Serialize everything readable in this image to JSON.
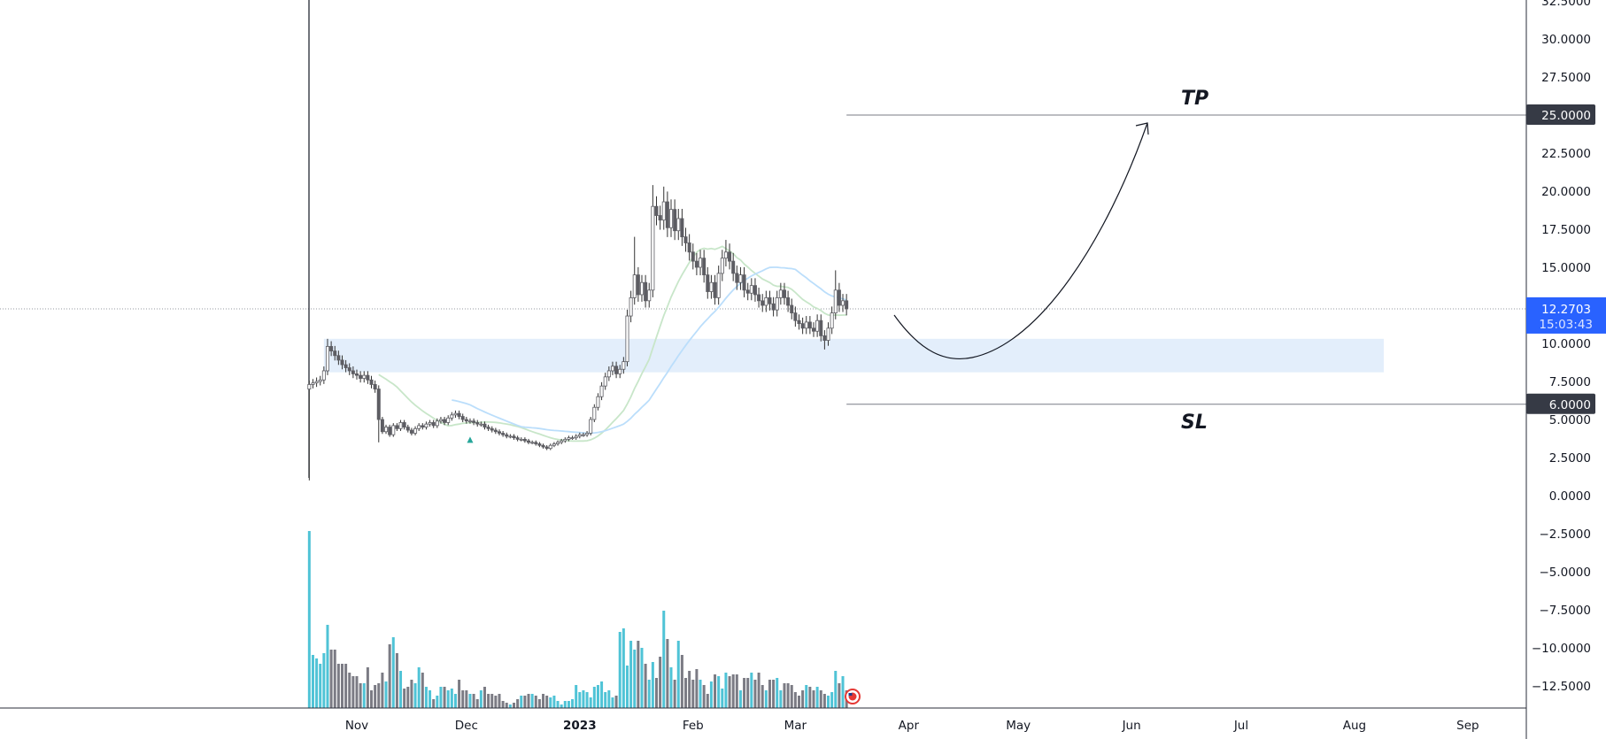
{
  "chart_data": {
    "type": "candlestick",
    "start_date": "2022-10-19",
    "close": [
      7.3,
      7.4,
      7.5,
      7.6,
      8.2,
      9.8,
      9.5,
      9.2,
      8.9,
      8.6,
      8.4,
      8.2,
      8.0,
      7.9,
      7.7,
      7.9,
      7.6,
      7.3,
      7.0,
      5.0,
      4.2,
      4.5,
      4.0,
      4.6,
      4.4,
      4.8,
      4.5,
      4.3,
      4.1,
      4.4,
      4.6,
      4.5,
      4.7,
      4.8,
      4.6,
      4.9,
      5.0,
      4.8,
      5.1,
      5.3,
      5.4,
      5.2,
      5.0,
      4.9,
      4.9,
      4.8,
      4.7,
      4.7,
      4.5,
      4.4,
      4.3,
      4.2,
      4.1,
      4.0,
      3.9,
      3.9,
      3.8,
      3.7,
      3.7,
      3.6,
      3.5,
      3.5,
      3.4,
      3.3,
      3.2,
      3.1,
      3.3,
      3.4,
      3.5,
      3.6,
      3.7,
      3.8,
      3.8,
      3.9,
      4.0,
      4.0,
      4.1,
      5.0,
      5.8,
      6.5,
      7.2,
      7.8,
      8.2,
      8.5,
      8.0,
      8.3,
      8.8,
      11.8,
      13.0,
      14.5,
      13.2,
      14.0,
      12.8,
      13.5,
      19.0,
      18.4,
      18.1,
      19.3,
      17.6,
      18.8,
      17.4,
      18.2,
      17.0,
      16.6,
      16.0,
      15.4,
      15.0,
      15.6,
      14.5,
      13.4,
      14.0,
      13.0,
      14.6,
      15.6,
      16.0,
      15.4,
      14.6,
      14.0,
      14.5,
      13.5,
      13.3,
      13.8,
      13.2,
      12.8,
      12.5,
      13.0,
      12.6,
      12.2,
      13.0,
      13.5,
      13.0,
      12.5,
      12.0,
      11.5,
      11.3,
      11.0,
      11.4,
      11.0,
      10.8,
      11.5,
      10.5,
      10.2,
      11.0,
      12.0,
      13.5,
      12.5,
      12.8,
      12.2703
    ],
    "first_open": 7.0,
    "wick_extremes": [
      {
        "date": "2022-10-19",
        "low": 1.0
      },
      {
        "date": "2022-10-24",
        "high": 10.3
      },
      {
        "date": "2022-11-07",
        "low": 3.5
      },
      {
        "date": "2023-01-16",
        "high": 17.0
      },
      {
        "date": "2023-01-21",
        "high": 20.4
      },
      {
        "date": "2023-01-24",
        "high": 20.3
      },
      {
        "date": "2023-02-10",
        "high": 16.8
      },
      {
        "date": "2023-03-12",
        "high": 14.8
      },
      {
        "date": "2023-03-09",
        "low": 9.6
      }
    ],
    "volume": [
      100,
      30,
      28,
      25,
      31,
      47,
      33,
      33,
      25,
      25,
      25,
      20,
      18,
      18,
      14,
      14,
      23,
      10,
      13,
      14,
      20,
      15,
      36,
      40,
      31,
      21,
      11,
      12,
      16,
      14,
      23,
      20,
      12,
      10,
      5,
      7,
      12,
      12,
      10,
      11,
      8,
      16,
      10,
      10,
      8,
      8,
      5,
      10,
      12,
      8,
      8,
      7,
      8,
      4,
      3,
      2,
      3,
      5,
      7,
      7,
      8,
      8,
      7,
      5,
      8,
      7,
      6,
      7,
      4,
      2,
      4,
      4,
      5,
      13,
      9,
      10,
      9,
      6,
      12,
      13,
      15,
      9,
      10,
      6,
      7,
      43,
      45,
      24,
      38,
      33,
      38,
      34,
      25,
      16,
      26,
      17,
      29,
      55,
      39,
      23,
      16,
      38,
      30,
      17,
      21,
      16,
      22,
      16,
      13,
      8,
      15,
      19,
      18,
      11,
      20,
      18,
      19,
      19,
      10,
      17,
      17,
      20,
      16,
      20,
      13,
      10,
      16,
      16,
      17,
      10,
      14,
      14,
      13,
      9,
      7,
      10,
      13,
      12,
      10,
      12,
      10,
      8,
      7,
      9,
      21,
      14,
      18,
      10
    ],
    "moving_averages": [
      {
        "period": 20,
        "color": "#c8e6c9"
      },
      {
        "period": 40,
        "color": "#bbdefb"
      }
    ],
    "x_tick_labels": [
      {
        "date": "2022-11-01",
        "label": "Nov"
      },
      {
        "date": "2022-12-01",
        "label": "Dec"
      },
      {
        "date": "2023-01-01",
        "label": "2023",
        "bold": true
      },
      {
        "date": "2023-02-01",
        "label": "Feb"
      },
      {
        "date": "2023-03-01",
        "label": "Mar"
      },
      {
        "date": "2023-04-01",
        "label": "Apr"
      },
      {
        "date": "2023-05-01",
        "label": "May"
      },
      {
        "date": "2023-06-01",
        "label": "Jun"
      },
      {
        "date": "2023-07-01",
        "label": "Jul"
      },
      {
        "date": "2023-08-01",
        "label": "Aug"
      },
      {
        "date": "2023-09-01",
        "label": "Sep"
      }
    ],
    "y_ticks": [
      "32.5000",
      "30.0000",
      "27.5000",
      "22.5000",
      "20.0000",
      "17.5000",
      "15.0000",
      "10.0000",
      "7.5000",
      "5.0000",
      "2.5000",
      "0.0000",
      "−2.5000",
      "−5.0000",
      "−7.5000",
      "−10.0000",
      "−12.5000"
    ],
    "y_tick_values": [
      32.5,
      30,
      27.5,
      22.5,
      20,
      17.5,
      15,
      10,
      7.5,
      5,
      2.5,
      0,
      -2.5,
      -5,
      -7.5,
      -10,
      -12.5
    ],
    "ylim": [
      -14,
      32.5
    ],
    "last_price": {
      "value": "12.2703",
      "countdown": "15:03:43",
      "color": "#2962ff"
    },
    "grid": false,
    "annotations": {
      "tp": {
        "label": "TP",
        "price": 25.0,
        "price_label": "25.0000",
        "from_date": "2023-03-15"
      },
      "sl": {
        "label": "SL",
        "price": 6.0,
        "price_label": "6.0000",
        "from_date": "2023-03-15"
      },
      "zone": {
        "top": 10.3,
        "bottom": 8.1,
        "from_date": "2022-10-23",
        "to_date": "2023-08-09",
        "color": "#e3eefb"
      },
      "signal_marker": {
        "date": "2022-12-02",
        "price": 3.7,
        "color": "#26a69a"
      }
    },
    "colors": {
      "up_volume": "#4fc3d6",
      "down_volume": "#7b7b84",
      "candle_down": "#5d5d63",
      "candle_up_fill": "#ffffff",
      "wick": "#333333",
      "axis_label_bg": "#363a45"
    }
  }
}
